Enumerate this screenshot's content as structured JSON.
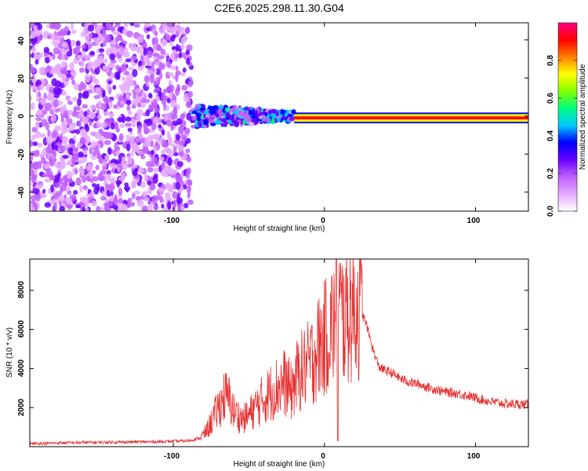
{
  "chart_data": [
    {
      "type": "heatmap",
      "title": "C2E6.2025.298.11.30.G04",
      "xlabel": "Height of straight line (km)",
      "ylabel": "Frequency (Hz)",
      "xlim": [
        -195,
        135
      ],
      "ylim": [
        -50,
        49
      ],
      "xticks": [
        -100,
        0,
        100
      ],
      "yticks": [
        -40,
        -20,
        0,
        20,
        40
      ],
      "xtick_labels": [
        "-100",
        "0",
        "100"
      ],
      "ytick_labels": [
        "-40",
        "-20",
        "0",
        "20",
        "40"
      ],
      "colorbar": {
        "label": "Normalized spectral amplitude",
        "range": [
          0,
          1
        ],
        "ticks": [
          0.0,
          0.2,
          0.4,
          0.6,
          0.8
        ],
        "tick_labels": [
          "0.0",
          "0.2",
          "0.4",
          "0.6",
          "0.8"
        ],
        "colors": [
          "#ffffff",
          "#e6aaff",
          "#c060ff",
          "#6a00ff",
          "#0000ff",
          "#00c8ff",
          "#00ff80",
          "#80ff00",
          "#ffff00",
          "#ff8000",
          "#ff0000",
          "#ff0080"
        ]
      },
      "regions": [
        {
          "name": "noise",
          "x_range": [
            -195,
            -88
          ],
          "y_range": [
            -50,
            49
          ],
          "amplitude": 0.15
        },
        {
          "name": "onset",
          "x_range": [
            -88,
            -20
          ],
          "y_center": 0,
          "y_halfwidth": 6,
          "amplitude": 0.35
        },
        {
          "name": "signal",
          "x_range": [
            -20,
            135
          ],
          "y_center": -1,
          "y_halfwidth": 2,
          "amplitude": 0.95
        }
      ],
      "grid": false
    },
    {
      "type": "line",
      "xlabel": "Height of straight line (km)",
      "ylabel": "SNR (10 * v/v)",
      "xlim": [
        -195,
        135
      ],
      "ylim": [
        0,
        9600
      ],
      "xticks": [
        -100,
        0,
        100
      ],
      "yticks": [
        2000,
        4000,
        6000,
        8000
      ],
      "xtick_labels": [
        "-100",
        "0",
        "100"
      ],
      "ytick_labels": [
        "2000",
        "4000",
        "6000",
        "8000"
      ],
      "line_color": "#e83030",
      "series": [
        {
          "name": "SNR",
          "x": [
            -195,
            -170,
            -140,
            -110,
            -90,
            -82,
            -78,
            -74,
            -70,
            -66,
            -63,
            -60,
            -57,
            -54,
            -50,
            -46,
            -42,
            -38,
            -34,
            -30,
            -26,
            -22,
            -18,
            -14,
            -10,
            -6,
            -3,
            0,
            3,
            6,
            8,
            10,
            12,
            14,
            17,
            20,
            24,
            28,
            32,
            36,
            40,
            44,
            50,
            56,
            62,
            70,
            80,
            90,
            100,
            110,
            120,
            135
          ],
          "y": [
            150,
            200,
            230,
            250,
            300,
            450,
            800,
            1400,
            2000,
            2600,
            2400,
            1800,
            1600,
            1400,
            1600,
            2000,
            2300,
            2600,
            2900,
            3100,
            3300,
            2800,
            3600,
            4000,
            4200,
            4800,
            5200,
            5500,
            6000,
            6300,
            7000,
            7000,
            6600,
            6800,
            7000,
            7100,
            7000,
            6200,
            5000,
            4100,
            3900,
            3800,
            3500,
            3300,
            3200,
            3000,
            2800,
            2700,
            2500,
            2300,
            2200,
            2150
          ]
        }
      ],
      "grid": false
    }
  ]
}
